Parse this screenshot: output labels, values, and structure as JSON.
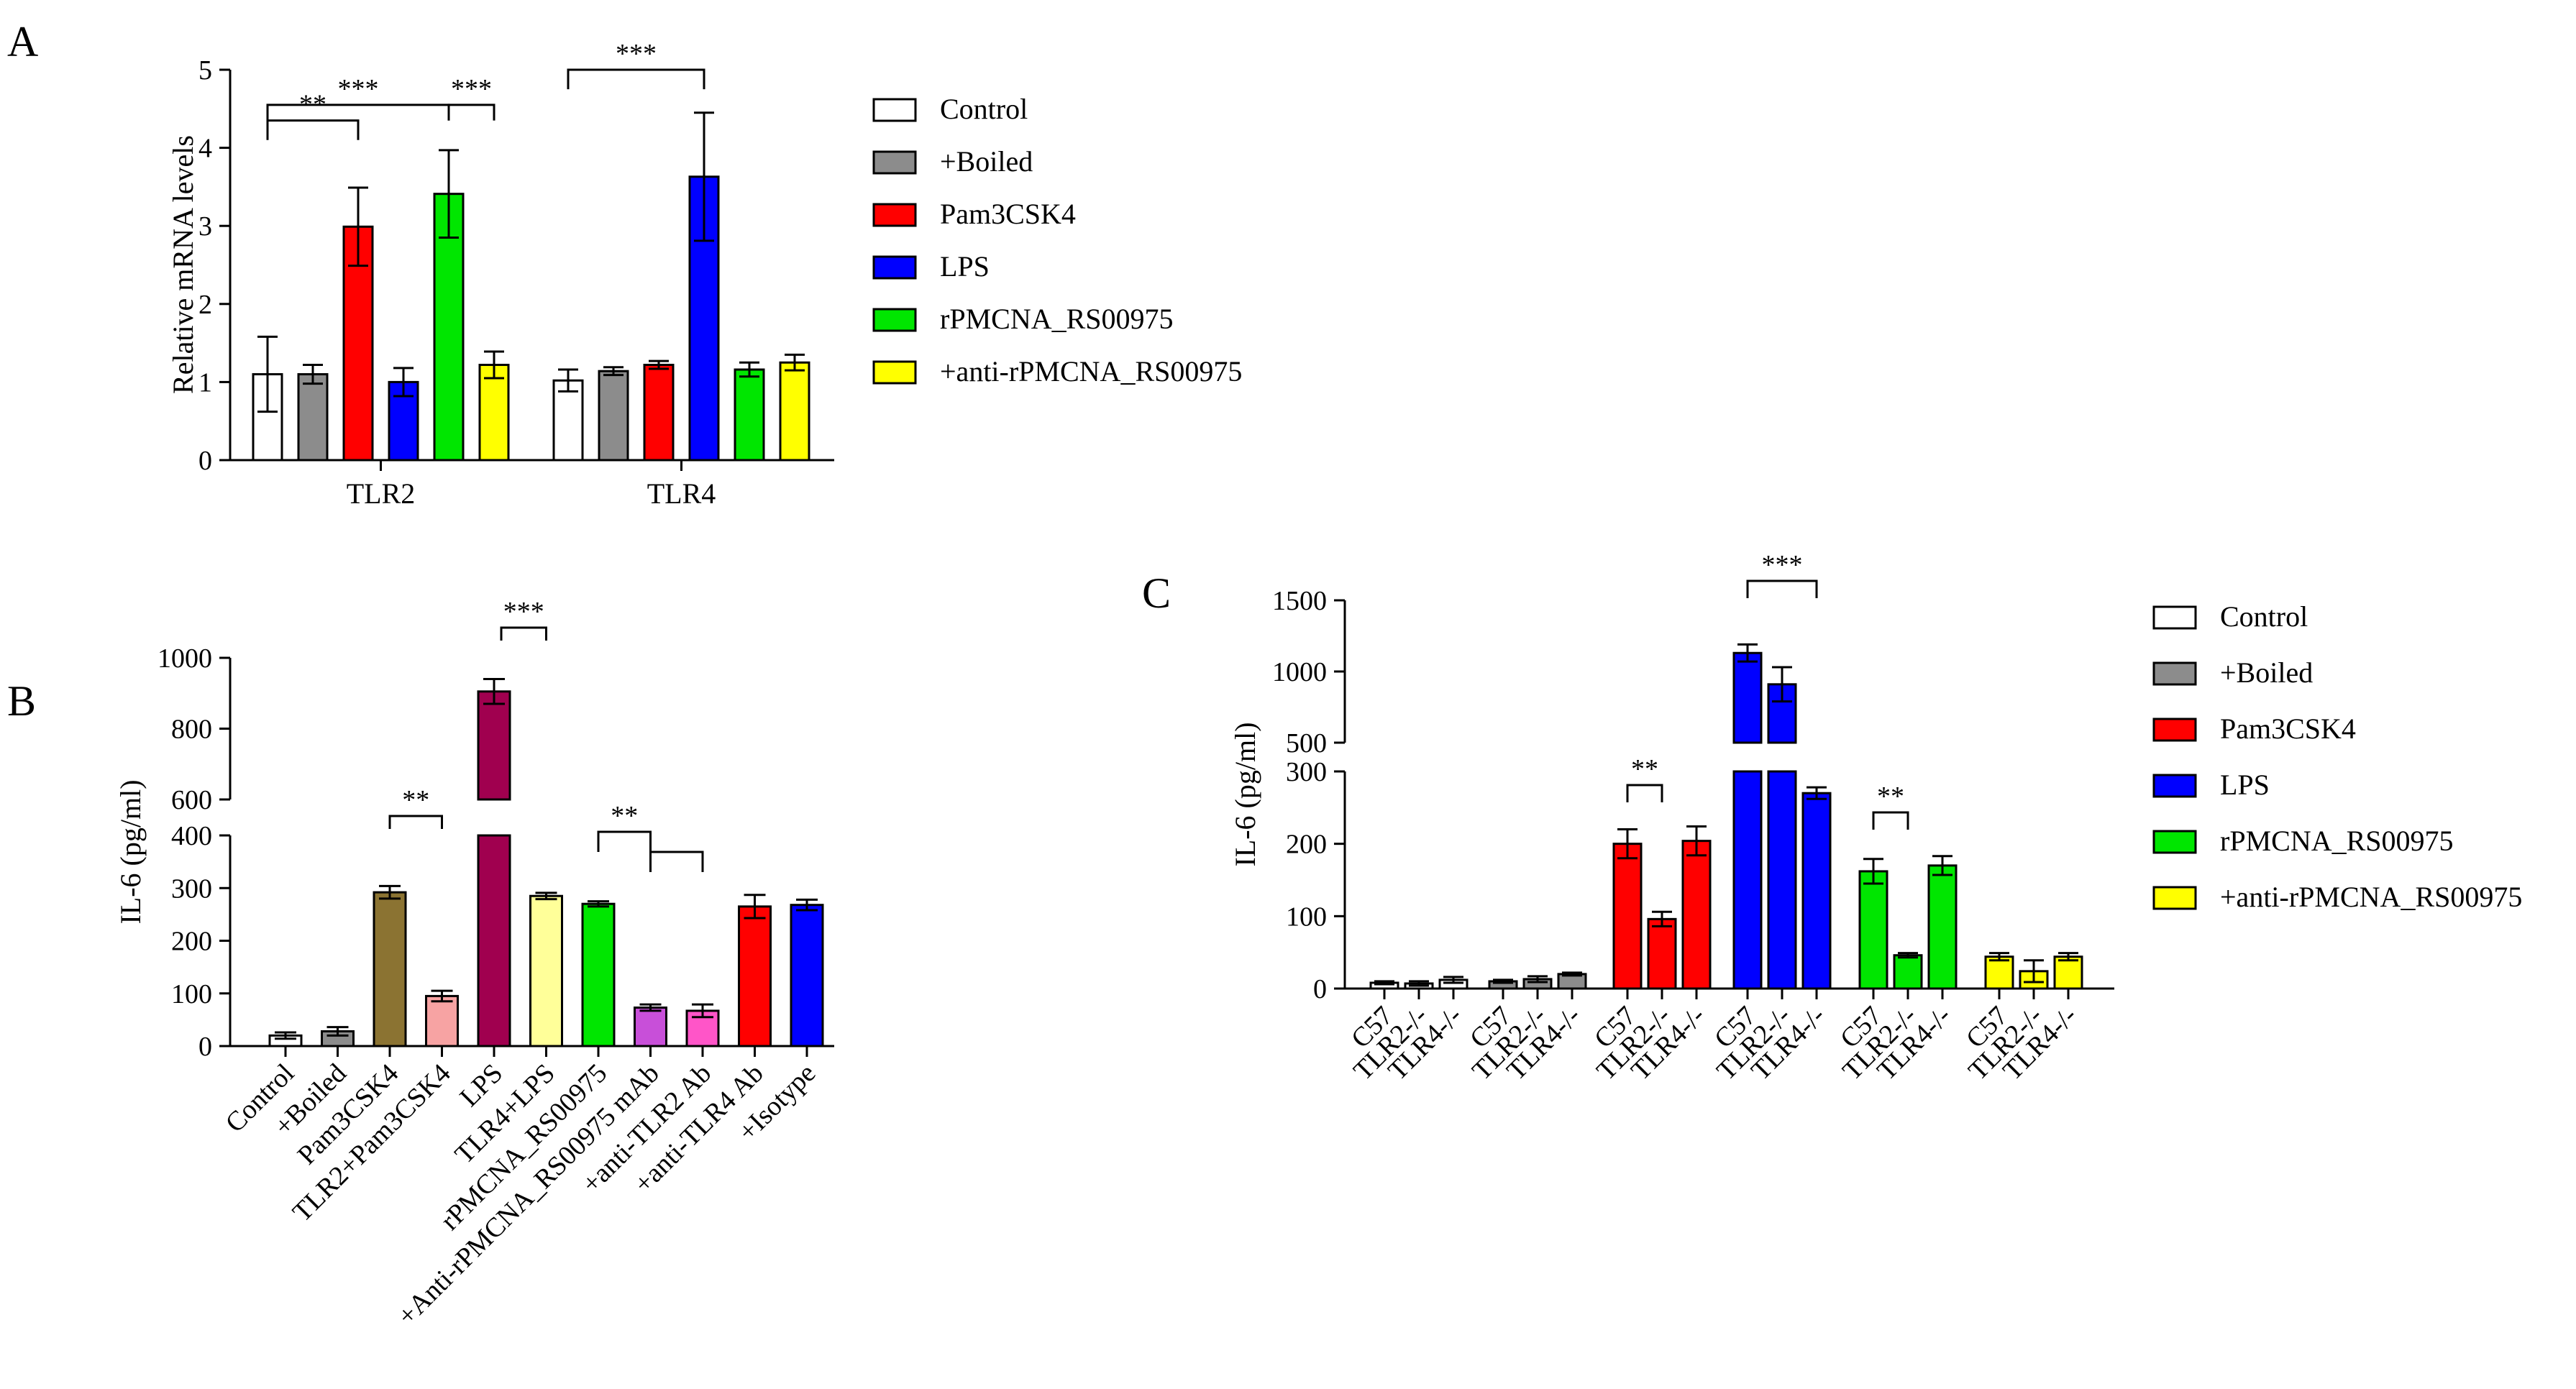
{
  "panel_labels": [
    "A",
    "B",
    "C"
  ],
  "chart_data": [
    {
      "panel": "A",
      "type": "bar",
      "title": "",
      "xlabel": "",
      "ylabel": "Relative mRNA levels",
      "ylim": [
        0,
        5
      ],
      "yticks": [
        "0",
        "1",
        "2",
        "3",
        "4",
        "5"
      ],
      "ytick_values": [
        0,
        1,
        2,
        3,
        4,
        5
      ],
      "categories": [
        "TLR2",
        "TLR4"
      ],
      "series": [
        {
          "name": "Control",
          "color": "#ffffff",
          "values": [
            1.1,
            1.02
          ],
          "errors": [
            0.48,
            0.14
          ]
        },
        {
          "name": "+Boiled",
          "color": "#8c8c8c",
          "values": [
            1.1,
            1.14
          ],
          "errors": [
            0.12,
            0.05
          ]
        },
        {
          "name": "Pam3CSK4",
          "color": "#ff0000",
          "values": [
            2.99,
            1.22
          ],
          "errors": [
            0.5,
            0.05
          ]
        },
        {
          "name": "LPS",
          "color": "#0000ff",
          "values": [
            1.0,
            3.63
          ],
          "errors": [
            0.18,
            0.82
          ]
        },
        {
          "name": "rPMCNA_RS00975",
          "color": "#00e600",
          "values": [
            3.41,
            1.16
          ],
          "errors": [
            0.56,
            0.09
          ]
        },
        {
          "name": "+anti-rPMCNA_RS00975",
          "color": "#ffff00",
          "values": [
            1.22,
            1.25
          ],
          "errors": [
            0.17,
            0.1
          ]
        }
      ],
      "legend": [
        "Control",
        "+Boiled",
        "Pam3CSK4",
        "LPS",
        "rPMCNA_RS00975",
        "+anti-rPMCNA_RS00975"
      ],
      "legend_position": "right",
      "annotations": [
        "**",
        "***",
        "***",
        "***"
      ]
    },
    {
      "panel": "B",
      "type": "bar",
      "title": "",
      "xlabel": "",
      "ylabel": "IL-6 (pg/ml)",
      "ylim": [
        0,
        1000
      ],
      "axis_break": [
        400,
        600
      ],
      "yticks": [
        "0",
        "100",
        "200",
        "300",
        "400",
        "600",
        "800",
        "1000"
      ],
      "ytick_values": [
        0,
        100,
        200,
        300,
        400,
        600,
        800,
        1000
      ],
      "categories": [
        "Control",
        "+Boiled",
        "Pam3CSK4",
        "TLR2+Pam3CSK4",
        "LPS",
        "TLR4+LPS",
        "rPMCNA_RS00975",
        "+Anti-rPMCNA_RS00975 mAb",
        "+anti-TLR2 Ab",
        "+anti-TLR4 Ab",
        "+Isotype"
      ],
      "values": [
        20,
        28,
        292,
        95,
        905,
        285,
        270,
        73,
        67,
        265,
        268
      ],
      "errors": [
        6,
        8,
        12,
        10,
        35,
        6,
        5,
        6,
        12,
        22,
        10
      ],
      "colors": [
        "#ffffff",
        "#8c8c8c",
        "#8b7332",
        "#f7a3a3",
        "#a0004f",
        "#ffff99",
        "#00e600",
        "#c84fd9",
        "#ff55c8",
        "#ff0000",
        "#0000ff"
      ],
      "annotations": [
        "**",
        "***",
        "**"
      ]
    },
    {
      "panel": "C",
      "type": "bar",
      "title": "",
      "xlabel": "",
      "ylabel": "IL-6 (pg/ml)",
      "ylim": [
        0,
        1500
      ],
      "axis_break": [
        300,
        500
      ],
      "yticks": [
        "0",
        "100",
        "200",
        "300",
        "500",
        "1000",
        "1500"
      ],
      "ytick_values": [
        0,
        100,
        200,
        300,
        500,
        1000,
        1500
      ],
      "categories": [
        "C57",
        "TLR2-/-",
        "TLR4-/-"
      ],
      "series": [
        {
          "name": "Control",
          "color": "#ffffff",
          "values": [
            8,
            7,
            12
          ],
          "errors": [
            2,
            3,
            4
          ]
        },
        {
          "name": "+Boiled",
          "color": "#8c8c8c",
          "values": [
            10,
            13,
            20
          ],
          "errors": [
            2,
            4,
            2
          ]
        },
        {
          "name": "Pam3CSK4",
          "color": "#ff0000",
          "values": [
            200,
            96,
            204
          ],
          "errors": [
            20,
            10,
            20
          ]
        },
        {
          "name": "LPS",
          "color": "#0000ff",
          "values": [
            1130,
            910,
            270
          ],
          "errors": [
            60,
            120,
            8
          ]
        },
        {
          "name": "rPMCNA_RS00975",
          "color": "#00e600",
          "values": [
            162,
            46,
            170
          ],
          "errors": [
            17,
            3,
            13
          ]
        },
        {
          "name": "+anti-rPMCNA_RS00975",
          "color": "#ffff00",
          "values": [
            44,
            24,
            44
          ],
          "errors": [
            5,
            15,
            5
          ]
        }
      ],
      "legend": [
        "Control",
        "+Boiled",
        "Pam3CSK4",
        "LPS",
        "rPMCNA_RS00975",
        "+anti-rPMCNA_RS00975"
      ],
      "legend_position": "right",
      "annotations": [
        "**",
        "***",
        "**"
      ]
    }
  ]
}
